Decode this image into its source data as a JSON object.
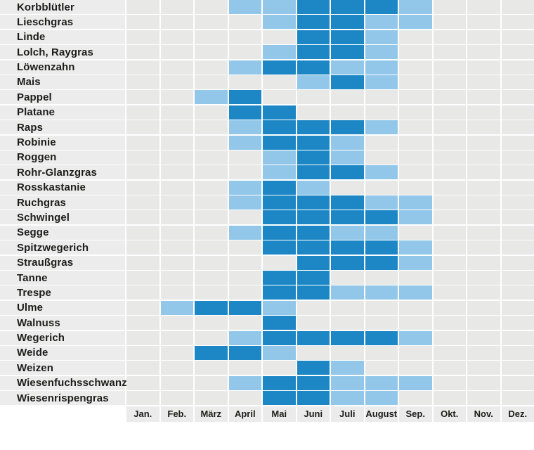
{
  "chart_data": {
    "type": "heatmap",
    "x_categories": [
      "Jan.",
      "Feb.",
      "März",
      "April",
      "Mai",
      "Juni",
      "Juli",
      "August",
      "Sep.",
      "Okt.",
      "Nov.",
      "Dez."
    ],
    "value_scale": {
      "0": "no fill (empty gray cell)",
      "1": "light blue cell",
      "2": "dark blue cell"
    },
    "rows": [
      {
        "name": "Korbblütler",
        "values": [
          0,
          0,
          0,
          1,
          1,
          2,
          2,
          2,
          1,
          0,
          0,
          0
        ]
      },
      {
        "name": "Lieschgras",
        "values": [
          0,
          0,
          0,
          0,
          1,
          2,
          2,
          1,
          1,
          0,
          0,
          0
        ]
      },
      {
        "name": "Linde",
        "values": [
          0,
          0,
          0,
          0,
          0,
          2,
          2,
          1,
          0,
          0,
          0,
          0
        ]
      },
      {
        "name": "Lolch, Raygras",
        "values": [
          0,
          0,
          0,
          0,
          1,
          2,
          2,
          1,
          0,
          0,
          0,
          0
        ]
      },
      {
        "name": "Löwenzahn",
        "values": [
          0,
          0,
          0,
          1,
          2,
          2,
          1,
          1,
          0,
          0,
          0,
          0
        ]
      },
      {
        "name": "Mais",
        "values": [
          0,
          0,
          0,
          0,
          0,
          1,
          2,
          1,
          0,
          0,
          0,
          0
        ]
      },
      {
        "name": "Pappel",
        "values": [
          0,
          0,
          1,
          2,
          0,
          0,
          0,
          0,
          0,
          0,
          0,
          0
        ]
      },
      {
        "name": "Platane",
        "values": [
          0,
          0,
          0,
          2,
          2,
          0,
          0,
          0,
          0,
          0,
          0,
          0
        ]
      },
      {
        "name": "Raps",
        "values": [
          0,
          0,
          0,
          1,
          2,
          2,
          2,
          1,
          0,
          0,
          0,
          0
        ]
      },
      {
        "name": "Robinie",
        "values": [
          0,
          0,
          0,
          1,
          2,
          2,
          1,
          0,
          0,
          0,
          0,
          0
        ]
      },
      {
        "name": "Roggen",
        "values": [
          0,
          0,
          0,
          0,
          1,
          2,
          1,
          0,
          0,
          0,
          0,
          0
        ]
      },
      {
        "name": "Rohr-Glanzgras",
        "values": [
          0,
          0,
          0,
          0,
          1,
          2,
          2,
          1,
          0,
          0,
          0,
          0
        ]
      },
      {
        "name": "Rosskastanie",
        "values": [
          0,
          0,
          0,
          1,
          2,
          1,
          0,
          0,
          0,
          0,
          0,
          0
        ]
      },
      {
        "name": "Ruchgras",
        "values": [
          0,
          0,
          0,
          1,
          2,
          2,
          2,
          1,
          1,
          0,
          0,
          0
        ]
      },
      {
        "name": "Schwingel",
        "values": [
          0,
          0,
          0,
          0,
          2,
          2,
          2,
          2,
          1,
          0,
          0,
          0
        ]
      },
      {
        "name": "Segge",
        "values": [
          0,
          0,
          0,
          1,
          2,
          2,
          1,
          1,
          0,
          0,
          0,
          0
        ]
      },
      {
        "name": "Spitzwegerich",
        "values": [
          0,
          0,
          0,
          0,
          2,
          2,
          2,
          2,
          1,
          0,
          0,
          0
        ]
      },
      {
        "name": "Straußgras",
        "values": [
          0,
          0,
          0,
          0,
          0,
          2,
          2,
          2,
          1,
          0,
          0,
          0
        ]
      },
      {
        "name": "Tanne",
        "values": [
          0,
          0,
          0,
          0,
          2,
          2,
          0,
          0,
          0,
          0,
          0,
          0
        ]
      },
      {
        "name": "Trespe",
        "values": [
          0,
          0,
          0,
          0,
          2,
          2,
          1,
          1,
          1,
          0,
          0,
          0
        ]
      },
      {
        "name": "Ulme",
        "values": [
          0,
          1,
          2,
          2,
          1,
          0,
          0,
          0,
          0,
          0,
          0,
          0
        ]
      },
      {
        "name": "Walnuss",
        "values": [
          0,
          0,
          0,
          0,
          2,
          0,
          0,
          0,
          0,
          0,
          0,
          0
        ]
      },
      {
        "name": "Wegerich",
        "values": [
          0,
          0,
          0,
          1,
          2,
          2,
          2,
          2,
          1,
          0,
          0,
          0
        ]
      },
      {
        "name": "Weide",
        "values": [
          0,
          0,
          2,
          2,
          1,
          0,
          0,
          0,
          0,
          0,
          0,
          0
        ]
      },
      {
        "name": "Weizen",
        "values": [
          0,
          0,
          0,
          0,
          0,
          2,
          1,
          0,
          0,
          0,
          0,
          0
        ]
      },
      {
        "name": "Wiesenfuchsschwanz",
        "values": [
          0,
          0,
          0,
          1,
          2,
          2,
          1,
          1,
          1,
          0,
          0,
          0
        ]
      },
      {
        "name": "Wiesenrispengras",
        "values": [
          0,
          0,
          0,
          0,
          2,
          2,
          1,
          1,
          0,
          0,
          0,
          0
        ]
      }
    ],
    "colors": {
      "dark_blue": "#1d87c6",
      "light_blue": "#92c7e9",
      "empty_cell": "#e8e8e7",
      "row_label_band": "#ececec",
      "axis_band": "#ebebeb",
      "text": "#1d1d1b",
      "background": "#ffffff"
    },
    "title": "",
    "xlabel": "",
    "ylabel": "",
    "legend_position": "none",
    "grid": "white gaps between cells"
  }
}
